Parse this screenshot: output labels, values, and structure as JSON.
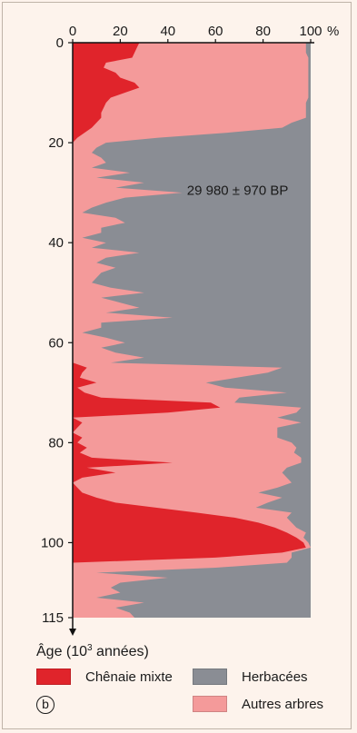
{
  "chart_data": {
    "type": "area",
    "orientation": "vertical-depth",
    "x_axis": {
      "ticks": [
        0,
        20,
        40,
        60,
        80,
        100
      ],
      "unit": "%",
      "xlim": [
        0,
        100
      ]
    },
    "y_axis": {
      "label_main": "Âge",
      "label_unit": "(10",
      "label_exp": "3",
      "label_tail": " années)",
      "ticks": [
        0,
        20,
        40,
        60,
        80,
        100,
        115
      ],
      "ylim": [
        0,
        115
      ]
    },
    "annotation": "29 980 ± 970 BP",
    "annotation_age": 29.5,
    "panel_label": "b",
    "grid": false,
    "series": [
      {
        "name": "Chênaie mixte",
        "color": "#e0242b",
        "ages": [
          0,
          1,
          2,
          3,
          4,
          5,
          6,
          7,
          8,
          9,
          10,
          11,
          12,
          13,
          14,
          15,
          16,
          17,
          18,
          19,
          20,
          21,
          22,
          23,
          24,
          25,
          26,
          27,
          28,
          29,
          30,
          31,
          32,
          33,
          34,
          35,
          36,
          37,
          38,
          39,
          40,
          41,
          42,
          43,
          44,
          45,
          46,
          47,
          48,
          49,
          50,
          51,
          52,
          53,
          54,
          55,
          56,
          57,
          58,
          59,
          60,
          61,
          62,
          63,
          64,
          65,
          66,
          67,
          68,
          69,
          70,
          71,
          72,
          73,
          74,
          75,
          76,
          77,
          78,
          79,
          80,
          81,
          82,
          83,
          84,
          85,
          86,
          87,
          88,
          89,
          90,
          91,
          92,
          93,
          94,
          95,
          96,
          97,
          98,
          99,
          100,
          101,
          102,
          103,
          104,
          105,
          106,
          107,
          108,
          109,
          110,
          111,
          112,
          113,
          114,
          115
        ],
        "values": [
          28,
          27,
          26,
          25,
          14,
          13,
          18,
          20,
          26,
          28,
          22,
          16,
          14,
          13,
          12,
          12,
          10,
          8,
          5,
          2,
          0,
          0,
          0,
          0,
          0,
          0,
          0,
          0,
          0,
          0,
          0,
          0,
          0,
          0,
          0,
          0,
          0,
          0,
          0,
          0,
          0,
          0,
          0,
          0,
          0,
          0,
          0,
          0,
          0,
          0,
          0,
          0,
          0,
          0,
          0,
          0,
          0,
          0,
          0,
          0,
          0,
          0,
          0,
          0,
          0,
          6,
          4,
          3,
          10,
          2,
          5,
          12,
          58,
          62,
          40,
          0,
          4,
          2,
          0,
          4,
          2,
          6,
          3,
          8,
          42,
          6,
          18,
          4,
          0,
          2,
          4,
          10,
          18,
          35,
          52,
          68,
          78,
          85,
          90,
          94,
          97,
          98,
          88,
          60,
          0,
          0,
          0,
          0,
          0,
          0,
          0,
          0,
          0,
          0,
          0,
          0
        ]
      },
      {
        "name": "Autres arbres",
        "color": "#f49a9a",
        "ages": [
          0,
          1,
          2,
          3,
          4,
          5,
          6,
          7,
          8,
          9,
          10,
          11,
          12,
          13,
          14,
          15,
          16,
          17,
          18,
          19,
          20,
          21,
          22,
          23,
          24,
          25,
          26,
          27,
          28,
          29,
          30,
          31,
          32,
          33,
          34,
          35,
          36,
          37,
          38,
          39,
          40,
          41,
          42,
          43,
          44,
          45,
          46,
          47,
          48,
          49,
          50,
          51,
          52,
          53,
          54,
          55,
          56,
          57,
          58,
          59,
          60,
          61,
          62,
          63,
          64,
          65,
          66,
          67,
          68,
          69,
          70,
          71,
          72,
          73,
          74,
          75,
          76,
          77,
          78,
          79,
          80,
          81,
          82,
          83,
          84,
          85,
          86,
          87,
          88,
          89,
          90,
          91,
          92,
          93,
          94,
          95,
          96,
          97,
          98,
          99,
          100,
          101,
          102,
          103,
          104,
          105,
          106,
          107,
          108,
          109,
          110,
          111,
          112,
          113,
          114,
          115
        ],
        "values": [
          70,
          71,
          72,
          74,
          85,
          86,
          81,
          79,
          73,
          71,
          77,
          83,
          84,
          85,
          86,
          86,
          82,
          80,
          60,
          34,
          14,
          10,
          8,
          12,
          14,
          8,
          24,
          10,
          30,
          18,
          46,
          22,
          14,
          8,
          4,
          18,
          22,
          12,
          12,
          4,
          14,
          8,
          28,
          14,
          10,
          18,
          12,
          10,
          8,
          16,
          30,
          12,
          20,
          28,
          14,
          42,
          12,
          12,
          4,
          14,
          22,
          12,
          18,
          30,
          16,
          82,
          78,
          66,
          46,
          62,
          85,
          58,
          10,
          34,
          54,
          86,
          92,
          84,
          86,
          82,
          90,
          88,
          90,
          88,
          54,
          84,
          70,
          86,
          92,
          84,
          74,
          78,
          64,
          42,
          40,
          22,
          14,
          9,
          8,
          3,
          2,
          2,
          4,
          32,
          90,
          60,
          10,
          40,
          20,
          16,
          20,
          10,
          30,
          18,
          24,
          26
        ]
      },
      {
        "name": "Herbacées",
        "color": "#8a8d94",
        "ages": [],
        "values": [],
        "note": "remainder to 100 %"
      }
    ]
  },
  "legend": {
    "chenaie": "Chênaie mixte",
    "herbacees": "Herbacées",
    "autres": "Autres arbres"
  },
  "axis_title": {
    "main": "Âge",
    "pre": " (10",
    "sup": "3",
    "post": " années)"
  },
  "percent_sign": "%",
  "panel_label": "b"
}
